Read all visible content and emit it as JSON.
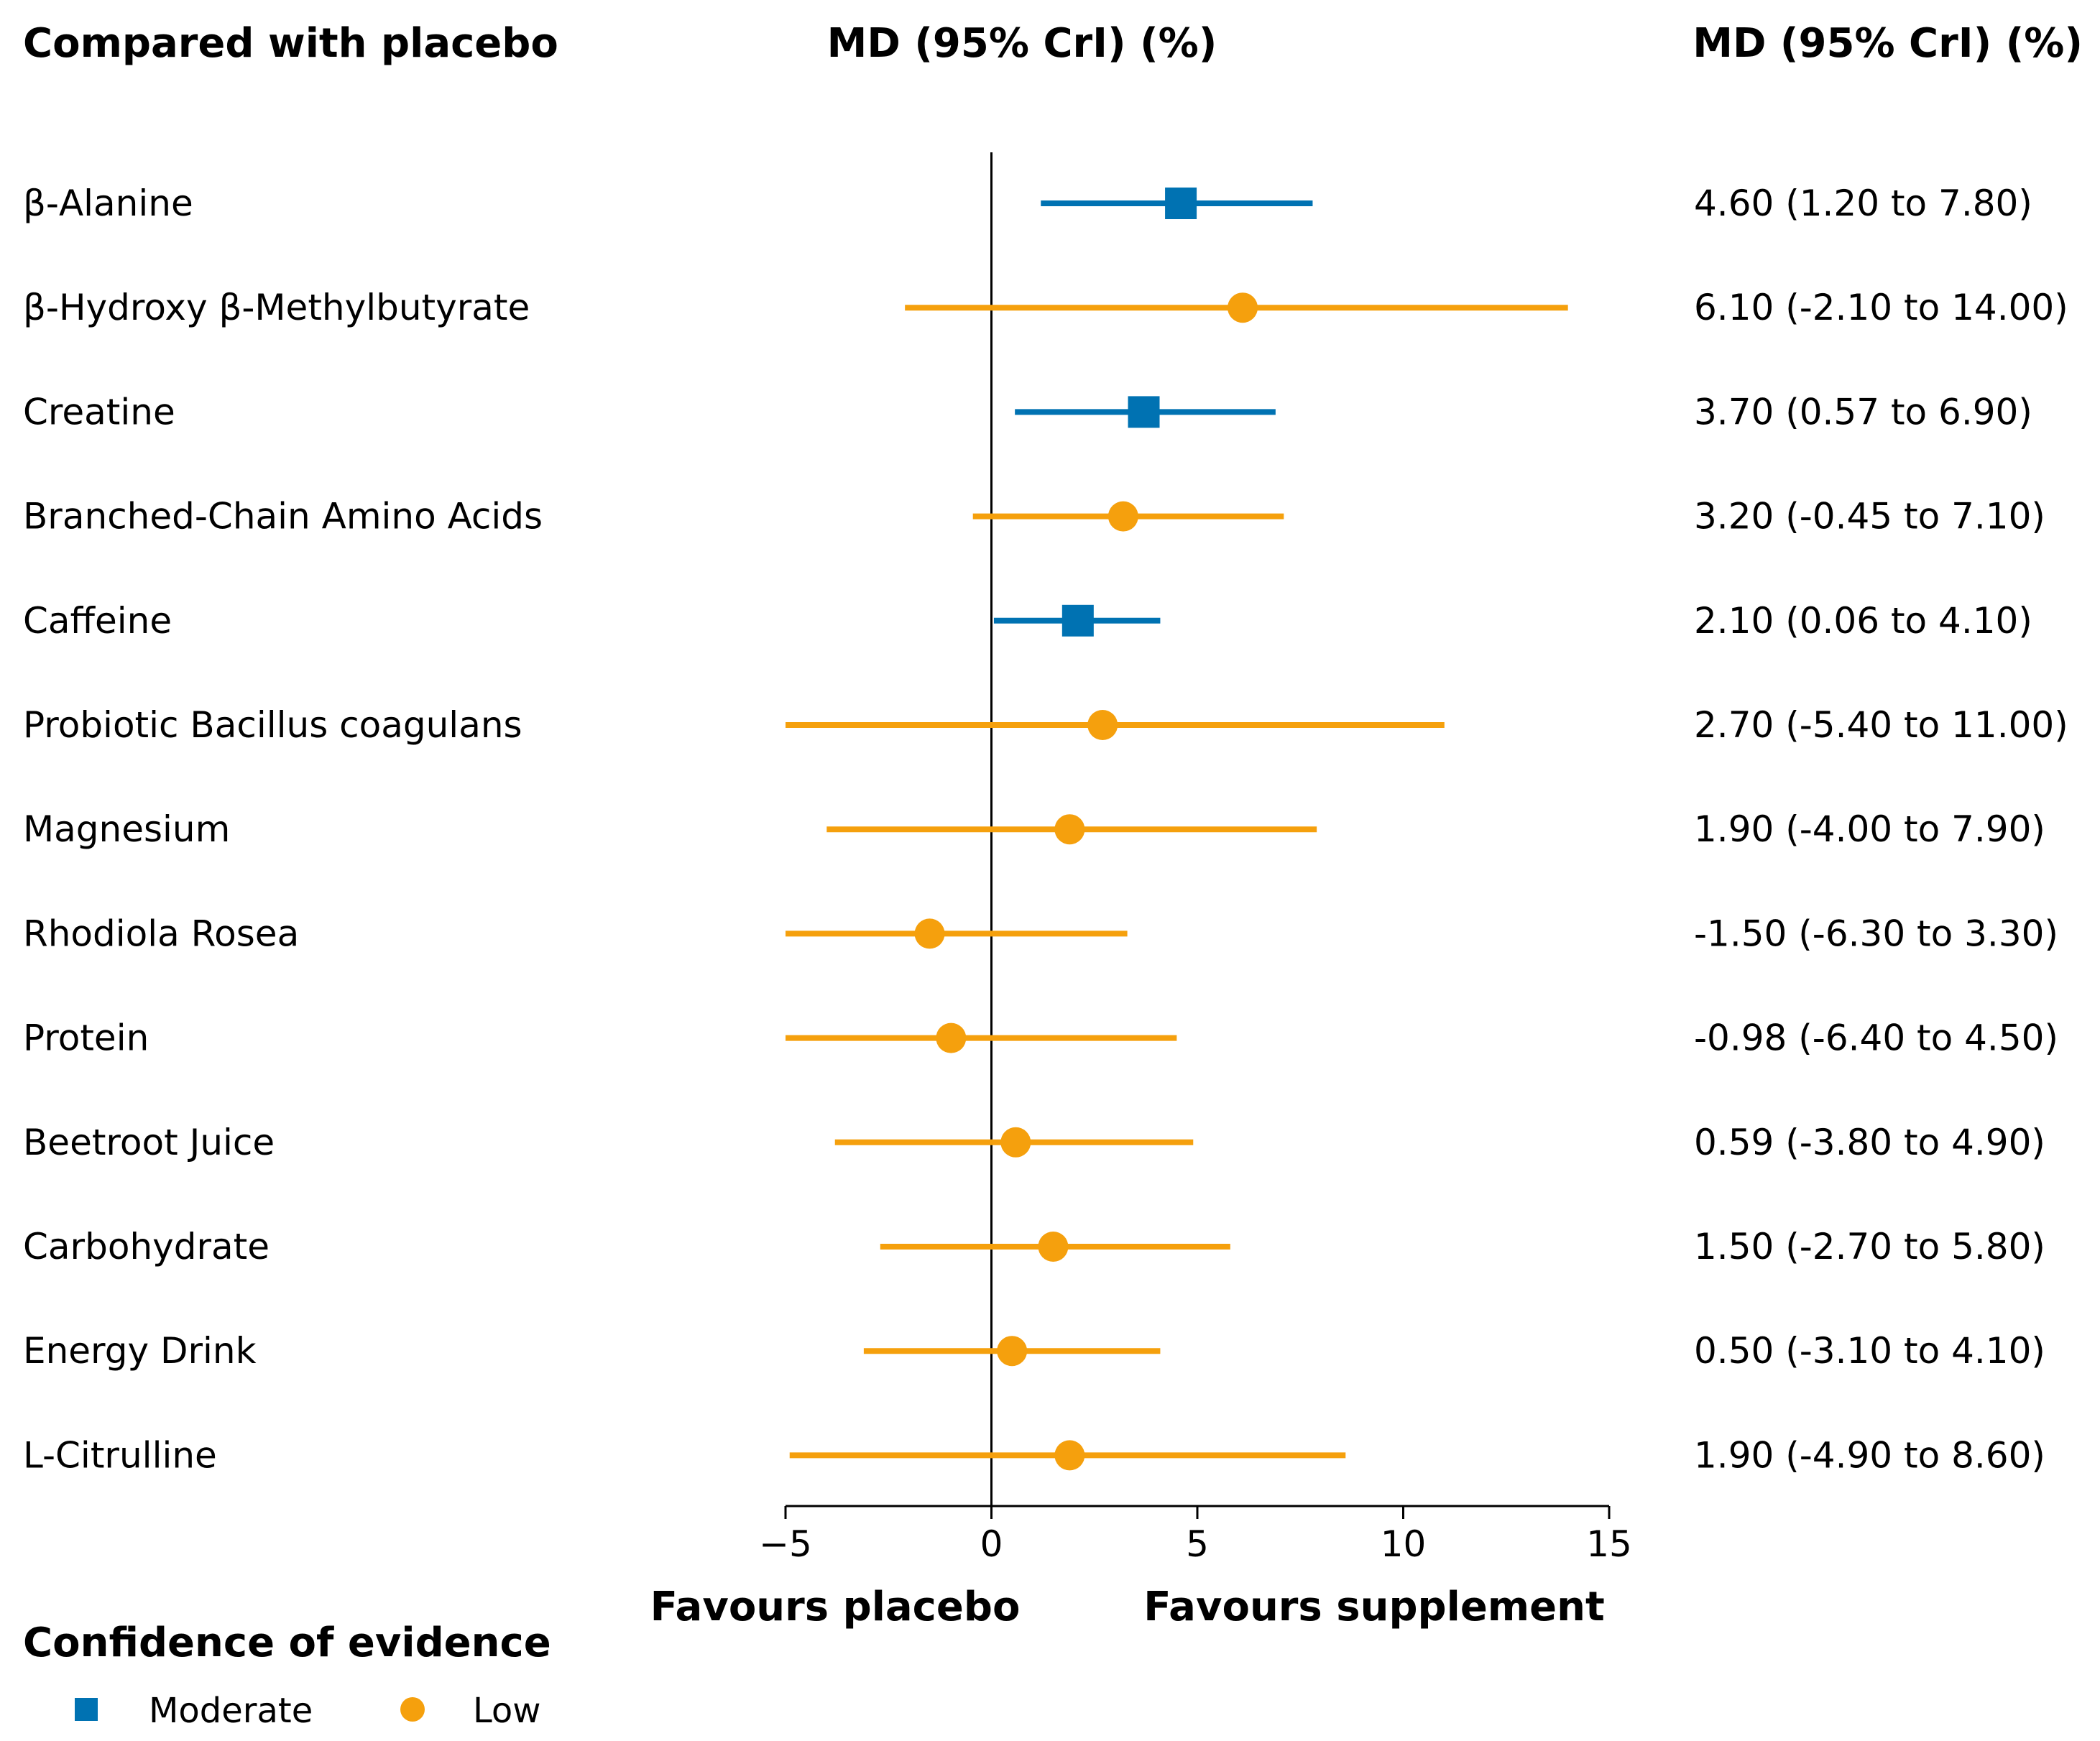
{
  "header": {
    "left_title": "Compared with placebo",
    "center_title": "MD (95% CrI) (%)",
    "right_title": "MD (95% CrI) (%)"
  },
  "colors": {
    "moderate": "#0072B2",
    "low": "#F5A00D",
    "axis": "#000000"
  },
  "favours": {
    "left": "Favours placebo",
    "right": "Favours supplement"
  },
  "legend": {
    "title": "Confidence of evidence",
    "items": [
      {
        "label": "Moderate",
        "confidence": "moderate",
        "shape": "square"
      },
      {
        "label": "Low",
        "confidence": "low",
        "shape": "circle"
      }
    ]
  },
  "chart_data": {
    "type": "forest",
    "title": "",
    "xlabel": "",
    "xlim": [
      -5,
      15
    ],
    "ticks": [
      {
        "value": -5,
        "label": "−5"
      },
      {
        "value": 0,
        "label": "0"
      },
      {
        "value": 5,
        "label": "5"
      },
      {
        "value": 10,
        "label": "10"
      },
      {
        "value": 15,
        "label": "15"
      }
    ],
    "reference_line": 0,
    "rows": [
      {
        "label": "β-Alanine",
        "md": 4.6,
        "lower": 1.2,
        "upper": 7.8,
        "text": "4.60 (1.20 to 7.80)",
        "confidence": "moderate"
      },
      {
        "label": "β-Hydroxy β-Methylbutyrate",
        "md": 6.1,
        "lower": -2.1,
        "upper": 14.0,
        "text": "6.10 (-2.10 to 14.00)",
        "confidence": "low"
      },
      {
        "label": "Creatine",
        "md": 3.7,
        "lower": 0.57,
        "upper": 6.9,
        "text": "3.70 (0.57 to 6.90)",
        "confidence": "moderate"
      },
      {
        "label": "Branched-Chain Amino Acids",
        "md": 3.2,
        "lower": -0.45,
        "upper": 7.1,
        "text": "3.20 (-0.45 to 7.10)",
        "confidence": "low"
      },
      {
        "label": "Caffeine",
        "md": 2.1,
        "lower": 0.06,
        "upper": 4.1,
        "text": "2.10 (0.06 to 4.10)",
        "confidence": "moderate"
      },
      {
        "label": "Probiotic Bacillus coagulans",
        "md": 2.7,
        "lower": -5.4,
        "upper": 11.0,
        "text": "2.70 (-5.40 to 11.00)",
        "confidence": "low"
      },
      {
        "label": "Magnesium",
        "md": 1.9,
        "lower": -4.0,
        "upper": 7.9,
        "text": "1.90 (-4.00 to 7.90)",
        "confidence": "low"
      },
      {
        "label": "Rhodiola Rosea",
        "md": -1.5,
        "lower": -6.3,
        "upper": 3.3,
        "text": "-1.50 (-6.30 to 3.30)",
        "confidence": "low"
      },
      {
        "label": "Protein",
        "md": -0.98,
        "lower": -6.4,
        "upper": 4.5,
        "text": "-0.98 (-6.40 to 4.50)",
        "confidence": "low"
      },
      {
        "label": "Beetroot Juice",
        "md": 0.59,
        "lower": -3.8,
        "upper": 4.9,
        "text": "0.59 (-3.80 to 4.90)",
        "confidence": "low"
      },
      {
        "label": "Carbohydrate",
        "md": 1.5,
        "lower": -2.7,
        "upper": 5.8,
        "text": "1.50 (-2.70 to 5.80)",
        "confidence": "low"
      },
      {
        "label": "Energy Drink",
        "md": 0.5,
        "lower": -3.1,
        "upper": 4.1,
        "text": "0.50 (-3.10 to 4.10)",
        "confidence": "low"
      },
      {
        "label": "L-Citrulline",
        "md": 1.9,
        "lower": -4.9,
        "upper": 8.6,
        "text": "1.90 (-4.90 to 8.60)",
        "confidence": "low"
      }
    ]
  }
}
